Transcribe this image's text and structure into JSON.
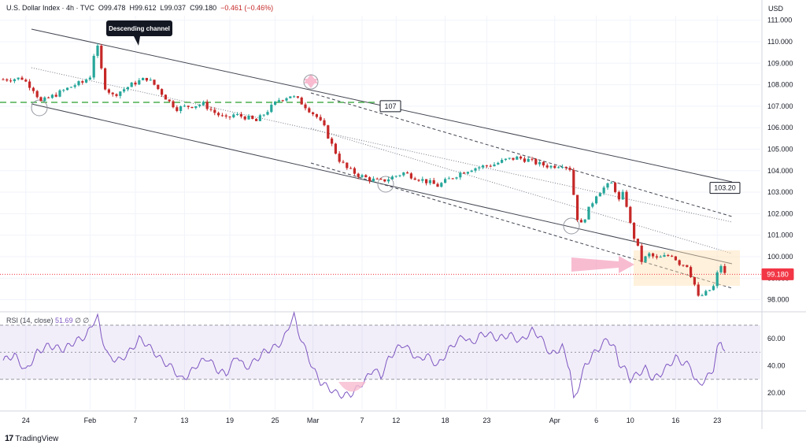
{
  "header": {
    "symbol": "U.S. Dollar Index · 4h · TVC",
    "open_label": "O",
    "open": "99.478",
    "high_label": "H",
    "high": "99.612",
    "low_label": "L",
    "low": "99.037",
    "close_label": "C",
    "close": "99.180",
    "change": "−0.461 (−0.46%)"
  },
  "currency": "USD",
  "rsi_header": {
    "label": "RSI (14, close)",
    "value": "51.69",
    "extra": "∅ ∅"
  },
  "brand": {
    "logo": "17",
    "name": "TradingView"
  },
  "colors": {
    "up": "#26a69a",
    "down": "#c62828",
    "rsi": "#7e57c2",
    "support": "#4caf50",
    "price_marker": "#f23645"
  },
  "chart_data": [
    {
      "type": "candlestick",
      "title": "U.S. Dollar Index · 4h · TVC",
      "x_ticks": [
        "24",
        "Feb",
        "7",
        "13",
        "19",
        "25",
        "Mar",
        "7",
        "12",
        "18",
        "23",
        "Apr",
        "6",
        "10",
        "16",
        "23"
      ],
      "y_ticks": [
        "111.000",
        "110.000",
        "109.000",
        "108.000",
        "107.000",
        "106.000",
        "105.000",
        "104.000",
        "103.000",
        "102.000",
        "101.000",
        "100.000",
        "99.000",
        "98.000"
      ],
      "ylim": [
        97.5,
        111.6
      ],
      "price_path": [
        [
          0,
          108.25
        ],
        [
          5,
          108.3
        ],
        [
          8,
          107.8
        ],
        [
          10,
          107.2
        ],
        [
          14,
          107.55
        ],
        [
          19,
          108.0
        ],
        [
          21,
          108.1
        ],
        [
          23,
          108.4
        ],
        [
          24,
          109.4
        ],
        [
          25,
          109.7
        ],
        [
          26,
          108.7
        ],
        [
          27,
          107.9
        ],
        [
          29,
          107.5
        ],
        [
          32,
          107.8
        ],
        [
          35,
          108.1
        ],
        [
          38,
          108.3
        ],
        [
          40,
          108.0
        ],
        [
          42,
          107.6
        ],
        [
          44,
          107.2
        ],
        [
          46,
          106.9
        ],
        [
          49,
          107.0
        ],
        [
          53,
          107.1
        ],
        [
          56,
          106.7
        ],
        [
          59,
          106.4
        ],
        [
          61,
          106.6
        ],
        [
          64,
          106.5
        ],
        [
          67,
          106.3
        ],
        [
          70,
          106.8
        ],
        [
          73,
          107.3
        ],
        [
          76,
          107.5
        ],
        [
          78,
          107.3
        ],
        [
          80,
          107.0
        ],
        [
          83,
          106.5
        ],
        [
          85,
          106.0
        ],
        [
          87,
          105.2
        ],
        [
          89,
          104.5
        ],
        [
          91,
          104.1
        ],
        [
          94,
          103.8
        ],
        [
          97,
          103.6
        ],
        [
          100,
          103.5
        ],
        [
          103,
          103.7
        ],
        [
          106,
          103.9
        ],
        [
          109,
          103.7
        ],
        [
          112,
          103.5
        ],
        [
          115,
          103.3
        ],
        [
          118,
          103.6
        ],
        [
          121,
          103.9
        ],
        [
          124,
          104.1
        ],
        [
          127,
          104.2
        ],
        [
          130,
          104.3
        ],
        [
          133,
          104.5
        ],
        [
          136,
          104.6
        ],
        [
          139,
          104.5
        ],
        [
          142,
          104.3
        ],
        [
          145,
          104.2
        ],
        [
          148,
          104.3
        ],
        [
          150,
          104.1
        ],
        [
          151,
          102.9
        ],
        [
          152,
          101.8
        ],
        [
          153,
          101.5
        ],
        [
          155,
          102.2
        ],
        [
          157,
          102.9
        ],
        [
          159,
          103.2
        ],
        [
          161,
          103.4
        ],
        [
          162,
          103.1
        ],
        [
          163,
          102.6
        ],
        [
          164,
          102.9
        ],
        [
          165,
          102.4
        ],
        [
          166,
          101.5
        ],
        [
          167,
          100.9
        ],
        [
          168,
          100.4
        ],
        [
          169,
          99.8
        ],
        [
          171,
          100.1
        ],
        [
          173,
          99.9
        ],
        [
          175,
          100.0
        ],
        [
          177,
          100.1
        ],
        [
          179,
          99.7
        ],
        [
          181,
          99.6
        ],
        [
          183,
          98.7
        ],
        [
          184,
          98.1
        ],
        [
          186,
          98.3
        ],
        [
          188,
          98.6
        ],
        [
          189,
          99.2
        ],
        [
          190,
          99.6
        ],
        [
          191,
          99.18
        ]
      ],
      "price_labels": [
        {
          "price": 107,
          "text": "107"
        },
        {
          "price": 103.2,
          "text": "103.20"
        },
        {
          "price": 99.18,
          "text": "99.180"
        }
      ],
      "annotations": [
        "Descending channel"
      ]
    },
    {
      "type": "line",
      "title": "RSI (14, close)",
      "y_ticks": [
        "60.00",
        "40.00",
        "20.00"
      ],
      "ylim": [
        10,
        80
      ],
      "bands": [
        30,
        50,
        70
      ],
      "rsi_path": [
        [
          0,
          44
        ],
        [
          3,
          48
        ],
        [
          6,
          36
        ],
        [
          9,
          50
        ],
        [
          12,
          55
        ],
        [
          16,
          52
        ],
        [
          19,
          58
        ],
        [
          22,
          62
        ],
        [
          24,
          73
        ],
        [
          25,
          76
        ],
        [
          26,
          62
        ],
        [
          28,
          46
        ],
        [
          31,
          44
        ],
        [
          34,
          52
        ],
        [
          36,
          60
        ],
        [
          38,
          56
        ],
        [
          40,
          50
        ],
        [
          42,
          44
        ],
        [
          45,
          38
        ],
        [
          47,
          30
        ],
        [
          49,
          33
        ],
        [
          51,
          40
        ],
        [
          54,
          46
        ],
        [
          57,
          36
        ],
        [
          59,
          34
        ],
        [
          62,
          48
        ],
        [
          64,
          38
        ],
        [
          66,
          42
        ],
        [
          69,
          50
        ],
        [
          72,
          54
        ],
        [
          74,
          58
        ],
        [
          76,
          72
        ],
        [
          77,
          77
        ],
        [
          78,
          66
        ],
        [
          80,
          52
        ],
        [
          82,
          38
        ],
        [
          84,
          28
        ],
        [
          86,
          24
        ],
        [
          88,
          20
        ],
        [
          90,
          18
        ],
        [
          92,
          19
        ],
        [
          94,
          24
        ],
        [
          96,
          30
        ],
        [
          98,
          38
        ],
        [
          100,
          32
        ],
        [
          102,
          45
        ],
        [
          104,
          52
        ],
        [
          106,
          56
        ],
        [
          108,
          50
        ],
        [
          110,
          44
        ],
        [
          112,
          48
        ],
        [
          115,
          40
        ],
        [
          118,
          52
        ],
        [
          120,
          58
        ],
        [
          122,
          62
        ],
        [
          124,
          56
        ],
        [
          126,
          62
        ],
        [
          128,
          64
        ],
        [
          131,
          60
        ],
        [
          134,
          63
        ],
        [
          137,
          58
        ],
        [
          140,
          66
        ],
        [
          142,
          62
        ],
        [
          145,
          48
        ],
        [
          148,
          54
        ],
        [
          150,
          38
        ],
        [
          151,
          14
        ],
        [
          152,
          22
        ],
        [
          154,
          40
        ],
        [
          156,
          48
        ],
        [
          158,
          54
        ],
        [
          160,
          60
        ],
        [
          162,
          52
        ],
        [
          163,
          42
        ],
        [
          165,
          36
        ],
        [
          166,
          30
        ],
        [
          168,
          34
        ],
        [
          170,
          38
        ],
        [
          172,
          30
        ],
        [
          174,
          34
        ],
        [
          176,
          40
        ],
        [
          178,
          46
        ],
        [
          180,
          42
        ],
        [
          182,
          40
        ],
        [
          183,
          30
        ],
        [
          184,
          26
        ],
        [
          186,
          30
        ],
        [
          188,
          38
        ],
        [
          189,
          52
        ],
        [
          190,
          58
        ],
        [
          191,
          52
        ]
      ]
    }
  ]
}
